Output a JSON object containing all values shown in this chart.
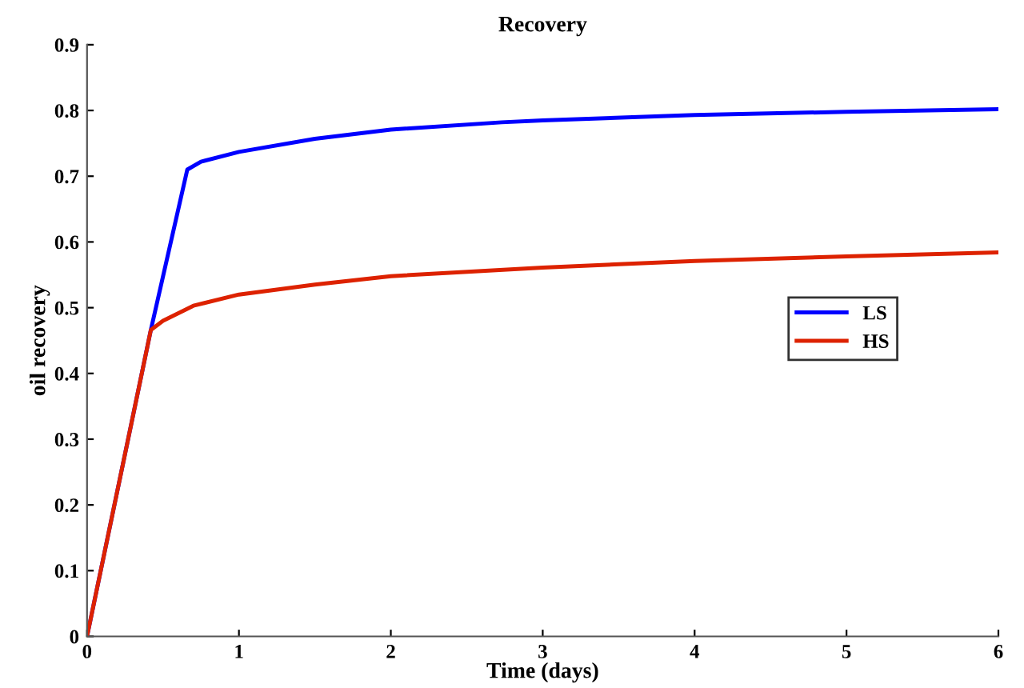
{
  "chart_data": {
    "type": "line",
    "title": "Recovery",
    "xlabel": "Time (days)",
    "ylabel": "oil recovery",
    "xlim": [
      0,
      6
    ],
    "xticks": [
      0,
      1,
      2,
      3,
      4,
      5,
      6
    ],
    "ylim": [
      0,
      0.9
    ],
    "yticks": [
      0,
      0.1,
      0.2,
      0.3,
      0.4,
      0.5,
      0.6,
      0.7,
      0.8,
      0.9
    ],
    "grid": false,
    "legend": "right",
    "line_style": "solid",
    "marker": "none",
    "series": [
      {
        "name": "LS",
        "color": "#0000ff",
        "x": [
          0,
          0.42,
          0.66,
          0.75,
          1,
          1.5,
          2,
          2.73,
          3,
          4,
          5,
          6
        ],
        "values": [
          0,
          0.466,
          0.71,
          0.722,
          0.737,
          0.757,
          0.771,
          0.782,
          0.785,
          0.793,
          0.798,
          0.802
        ]
      },
      {
        "name": "HS",
        "color": "#dd2200",
        "x": [
          0,
          0.42,
          0.5,
          0.7,
          1,
          1.5,
          2,
          3,
          4,
          5,
          6
        ],
        "values": [
          0,
          0.466,
          0.48,
          0.503,
          0.52,
          0.535,
          0.548,
          0.561,
          0.571,
          0.578,
          0.584
        ]
      }
    ]
  }
}
